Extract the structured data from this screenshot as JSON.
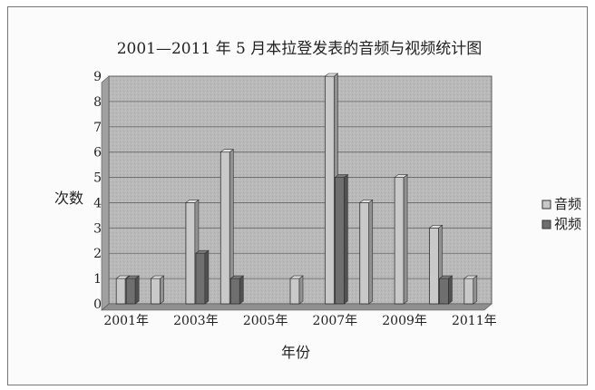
{
  "chart_data": {
    "type": "bar",
    "title": "2001—2011 年 5 月本拉登发表的音频与视频统计图",
    "xlabel": "年份",
    "ylabel": "次数",
    "categories": [
      "2001年",
      "2002年",
      "2003年",
      "2004年",
      "2005年",
      "2006年",
      "2007年",
      "2008年",
      "2009年",
      "2010年",
      "2011年"
    ],
    "x_tick_labels": [
      "2001年",
      "2003年",
      "2005年",
      "2007年",
      "2009年",
      "2011年"
    ],
    "y_ticks": [
      "0",
      "1",
      "2",
      "3",
      "4",
      "5",
      "6",
      "7",
      "8",
      "9"
    ],
    "ylim": [
      0,
      9
    ],
    "grid": true,
    "legend_position": "right",
    "series": [
      {
        "name": "音频",
        "color": "#c9c9c9",
        "values": [
          1,
          1,
          4,
          6,
          0,
          1,
          9,
          4,
          5,
          3,
          1
        ]
      },
      {
        "name": "视频",
        "color": "#6f6f6f",
        "values": [
          1,
          0,
          2,
          1,
          0,
          0,
          5,
          0,
          0,
          1,
          0
        ]
      }
    ]
  }
}
